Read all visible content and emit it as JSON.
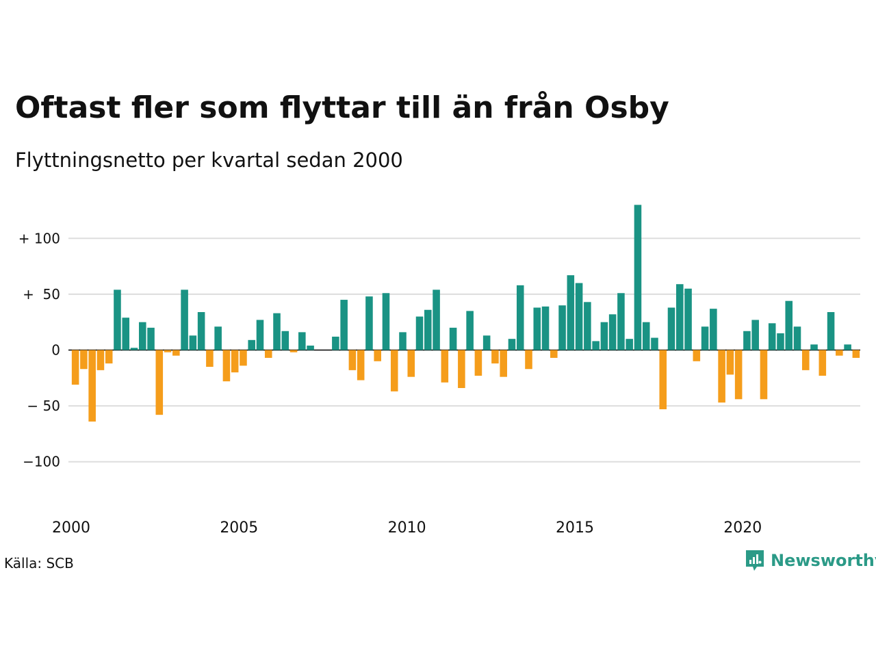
{
  "header": {
    "title": "Oftast fler som flyttar till än från Osby",
    "subtitle": "Flyttningsnetto per kvartal sedan 2000"
  },
  "footer": {
    "source": "Källa: SCB",
    "brand": "Newsworthy",
    "brand_icon": "newsworthy-logo-icon"
  },
  "colors": {
    "positive": "#1a9384",
    "negative": "#f59d1b",
    "grid": "#dddddd",
    "brand": "#2b9a87"
  },
  "chart_data": {
    "type": "bar",
    "x_start": "2000 Q1",
    "xtick_labels": [
      "2000",
      "2005",
      "2010",
      "2015",
      "2020"
    ],
    "ytick_labels": [
      "+ 100",
      "+  50",
      "0",
      "− 50",
      "−100"
    ],
    "ytick_values": [
      100,
      50,
      0,
      -50,
      -100
    ],
    "ylim": [
      -140,
      130
    ],
    "grid": true,
    "values": [
      -31,
      -17,
      -64,
      -18,
      -12,
      54,
      29,
      2,
      25,
      20,
      -58,
      -2,
      -5,
      54,
      13,
      34,
      -15,
      21,
      -28,
      -20,
      -14,
      9,
      27,
      -7,
      33,
      17,
      -2,
      16,
      4,
      0,
      0,
      12,
      45,
      -18,
      -27,
      48,
      -10,
      51,
      -37,
      16,
      -24,
      30,
      36,
      54,
      -29,
      20,
      -34,
      35,
      -23,
      13,
      -12,
      -24,
      10,
      58,
      -17,
      38,
      39,
      -7,
      40,
      67,
      60,
      43,
      8,
      25,
      32,
      51,
      10,
      130,
      25,
      11,
      -53,
      38,
      59,
      55,
      -10,
      21,
      37,
      -47,
      -22,
      -44,
      17,
      27,
      -44,
      24,
      15,
      44,
      21,
      -18,
      5,
      -23,
      34,
      -5,
      5,
      -7
    ]
  }
}
